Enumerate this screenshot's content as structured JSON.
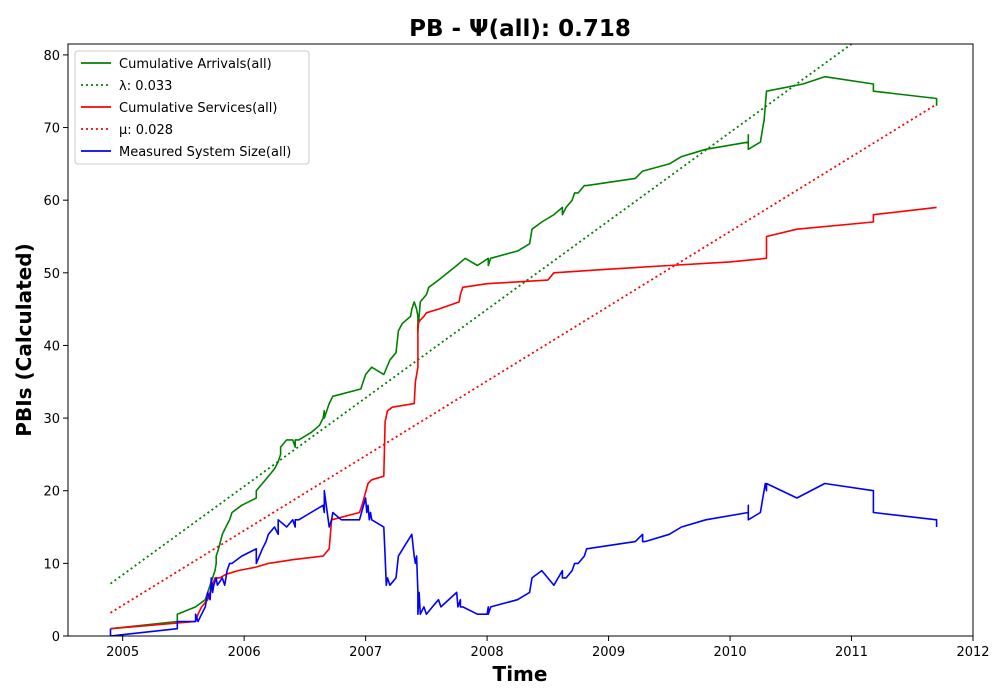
{
  "chart_data": {
    "type": "line",
    "title": "PB -  Ψ(all): 0.718",
    "xlabel": "Time",
    "ylabel": "PBIs (Calculated)",
    "xlim": [
      2004.55,
      2012.0
    ],
    "ylim": [
      0,
      81.5
    ],
    "x_ticks": [
      2005,
      2006,
      2007,
      2008,
      2009,
      2010,
      2011,
      2012
    ],
    "x_tick_labels": [
      "2005",
      "2006",
      "2007",
      "2008",
      "2009",
      "2010",
      "2011",
      "2012"
    ],
    "y_ticks": [
      0,
      10,
      20,
      30,
      40,
      50,
      60,
      70,
      80
    ],
    "y_tick_labels": [
      "0",
      "10",
      "20",
      "30",
      "40",
      "50",
      "60",
      "70",
      "80"
    ],
    "grid": false,
    "legend_position": "top-left",
    "series": [
      {
        "name": "Cumulative Arrivals(all)",
        "label": "Cumulative Arrivals(all)",
        "color": "#008000",
        "style": "solid",
        "x": [
          2004.9,
          2005.45,
          2005.45,
          2005.6,
          2005.68,
          2005.7,
          2005.72,
          2005.74,
          2005.76,
          2005.77,
          2005.77,
          2005.79,
          2005.82,
          2005.85,
          2005.88,
          2005.9,
          2005.98,
          2006.1,
          2006.1,
          2006.15,
          2006.2,
          2006.25,
          2006.28,
          2006.3,
          2006.3,
          2006.35,
          2006.4,
          2006.42,
          2006.42,
          2006.45,
          2006.55,
          2006.62,
          2006.65,
          2006.66,
          2006.66,
          2006.7,
          2006.73,
          2006.96,
          2007.0,
          2007.05,
          2007.15,
          2007.2,
          2007.25,
          2007.27,
          2007.3,
          2007.37,
          2007.38,
          2007.4,
          2007.42,
          2007.43,
          2007.43,
          2007.45,
          2007.5,
          2007.52,
          2007.6,
          2007.75,
          2007.82,
          2007.92,
          2008.01,
          2008.01,
          2008.03,
          2008.25,
          2008.35,
          2008.37,
          2008.45,
          2008.55,
          2008.62,
          2008.62,
          2008.65,
          2008.7,
          2008.72,
          2008.75,
          2008.8,
          2008.82,
          2009.22,
          2009.28,
          2009.5,
          2009.6,
          2009.8,
          2010.15,
          2010.15,
          2010.15,
          2010.25,
          2010.27,
          2010.28,
          2010.3,
          2010.6,
          2010.78,
          2011.18,
          2011.18,
          2011.7,
          2011.7
        ],
        "y": [
          1,
          2,
          3,
          4,
          5,
          6,
          7,
          8,
          9,
          10,
          11,
          12,
          14,
          15,
          16,
          17,
          18,
          19,
          20,
          21,
          22,
          23,
          24,
          25,
          26,
          27,
          27,
          26,
          27,
          27,
          28,
          29,
          30,
          31,
          30,
          32,
          33,
          34,
          36,
          37,
          36,
          38,
          39,
          42,
          43,
          44,
          45,
          46,
          45,
          44,
          42,
          46,
          47,
          48,
          49,
          51,
          52,
          51,
          52,
          51,
          52,
          53,
          54,
          56,
          57,
          58,
          59,
          58,
          59,
          60,
          61,
          61,
          62,
          62,
          63,
          64,
          65,
          66,
          67,
          68,
          69,
          67,
          68,
          70,
          71,
          75,
          76,
          77,
          76,
          75,
          74,
          73
        ]
      },
      {
        "name": "λ: 0.033",
        "label": "λ: 0.033",
        "color": "#008000",
        "style": "dotted",
        "x": [
          2004.9,
          2011.0
        ],
        "y": [
          7.2,
          81.5
        ]
      },
      {
        "name": "Cumulative Services(all)",
        "label": "Cumulative Services(all)",
        "color": "#ff0000",
        "style": "solid",
        "x": [
          2004.9,
          2005.6,
          2005.62,
          2005.65,
          2005.7,
          2005.72,
          2005.74,
          2005.76,
          2005.8,
          2005.85,
          2005.95,
          2006.1,
          2006.2,
          2006.4,
          2006.65,
          2006.7,
          2006.72,
          2006.95,
          2006.97,
          2007.02,
          2007.05,
          2007.15,
          2007.16,
          2007.18,
          2007.22,
          2007.4,
          2007.41,
          2007.43,
          2007.43,
          2007.45,
          2007.48,
          2007.5,
          2007.6,
          2007.77,
          2007.78,
          2007.8,
          2008.0,
          2008.5,
          2008.55,
          2009.0,
          2009.5,
          2010.0,
          2010.3,
          2010.3,
          2010.55,
          2011.18,
          2011.18,
          2011.7
        ],
        "y": [
          1,
          2,
          3,
          4,
          5,
          6,
          7,
          8,
          8,
          8.5,
          9,
          9.5,
          10,
          10.5,
          11,
          12,
          16,
          17,
          18,
          21,
          21.5,
          22,
          29.5,
          31,
          31.5,
          32,
          35,
          37,
          43,
          43.5,
          44,
          44.5,
          45,
          46,
          47,
          48,
          48.5,
          49,
          50,
          50.5,
          51,
          51.5,
          52,
          55,
          56,
          57,
          58,
          59
        ]
      },
      {
        "name": "μ: 0.028",
        "label": "μ: 0.028",
        "color": "#ff0000",
        "style": "dotted",
        "x": [
          2004.9,
          2011.7
        ],
        "y": [
          3.2,
          73.2
        ]
      },
      {
        "name": "Measured System Size(all)",
        "label": "Measured System Size(all)",
        "color": "#0000ff",
        "style": "solid",
        "x": [
          2004.9,
          2004.9,
          2005.45,
          2005.45,
          2005.6,
          2005.6,
          2005.62,
          2005.65,
          2005.68,
          2005.69,
          2005.7,
          2005.72,
          2005.73,
          2005.74,
          2005.75,
          2005.77,
          2005.78,
          2005.82,
          2005.84,
          2005.86,
          2005.88,
          2005.9,
          2005.98,
          2006.1,
          2006.1,
          2006.15,
          2006.18,
          2006.2,
          2006.25,
          2006.28,
          2006.28,
          2006.35,
          2006.4,
          2006.42,
          2006.42,
          2006.45,
          2006.55,
          2006.65,
          2006.66,
          2006.66,
          2006.7,
          2006.72,
          2006.73,
          2006.8,
          2006.95,
          2007.0,
          2007.01,
          2007.02,
          2007.03,
          2007.04,
          2007.05,
          2007.15,
          2007.16,
          2007.17,
          2007.18,
          2007.2,
          2007.25,
          2007.27,
          2007.38,
          2007.4,
          2007.41,
          2007.42,
          2007.43,
          2007.43,
          2007.44,
          2007.45,
          2007.48,
          2007.5,
          2007.55,
          2007.6,
          2007.62,
          2007.75,
          2007.76,
          2007.78,
          2007.78,
          2007.8,
          2007.92,
          2008.0,
          2008.01,
          2008.01,
          2008.03,
          2008.25,
          2008.35,
          2008.37,
          2008.45,
          2008.55,
          2008.62,
          2008.62,
          2008.65,
          2008.7,
          2008.72,
          2008.75,
          2008.8,
          2008.82,
          2009.22,
          2009.28,
          2009.28,
          2009.3,
          2009.5,
          2009.6,
          2009.8,
          2010.15,
          2010.15,
          2010.15,
          2010.25,
          2010.27,
          2010.28,
          2010.29,
          2010.3,
          2010.3,
          2010.55,
          2010.78,
          2011.18,
          2011.18,
          2011.7,
          2011.7
        ],
        "y": [
          1,
          0,
          1,
          2,
          2,
          3,
          2,
          3,
          4,
          5,
          6,
          5,
          8,
          6,
          7,
          8,
          7,
          8,
          7,
          9,
          10,
          10,
          11,
          12,
          10,
          12,
          13,
          14,
          15,
          14,
          16,
          15,
          16,
          15,
          16,
          16,
          17,
          18,
          17,
          20,
          15,
          16,
          17,
          16,
          16,
          19,
          17,
          18,
          16,
          17,
          16,
          15,
          11,
          7,
          8,
          7,
          8,
          11,
          14,
          11,
          10,
          11,
          6,
          3,
          6,
          3,
          4,
          3,
          4,
          5,
          4,
          6,
          4,
          5,
          4,
          4,
          3,
          3,
          4,
          3,
          4,
          5,
          6,
          8,
          9,
          7,
          9,
          8,
          8,
          9,
          10,
          10,
          11,
          12,
          13,
          14,
          13,
          13,
          14,
          15,
          16,
          17,
          18,
          16,
          17,
          19,
          20,
          21,
          20,
          21,
          19,
          21,
          20,
          17,
          16,
          15
        ]
      }
    ]
  }
}
